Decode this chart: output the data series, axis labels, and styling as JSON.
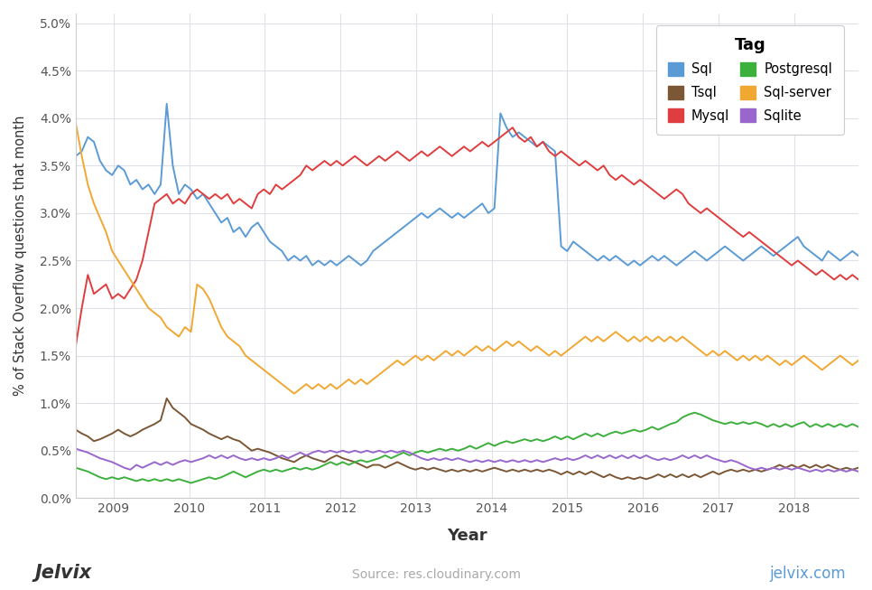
{
  "title": "",
  "xlabel": "Year",
  "ylabel": "% of Stack Overflow questions that month",
  "legend_title": "Tag",
  "background_color": "#ffffff",
  "plot_background": "#ffffff",
  "grid_color": "#e0e0e8",
  "series": {
    "Sql": {
      "color": "#5b9bd5",
      "data": [
        3.6,
        3.65,
        3.8,
        3.75,
        3.55,
        3.45,
        3.4,
        3.5,
        3.45,
        3.3,
        3.35,
        3.25,
        3.3,
        3.2,
        3.3,
        4.15,
        3.5,
        3.2,
        3.3,
        3.25,
        3.15,
        3.2,
        3.1,
        3.0,
        2.9,
        2.95,
        2.8,
        2.85,
        2.75,
        2.85,
        2.9,
        2.8,
        2.7,
        2.65,
        2.6,
        2.5,
        2.55,
        2.5,
        2.55,
        2.45,
        2.5,
        2.45,
        2.5,
        2.45,
        2.5,
        2.55,
        2.5,
        2.45,
        2.5,
        2.6,
        2.65,
        2.7,
        2.75,
        2.8,
        2.85,
        2.9,
        2.95,
        3.0,
        2.95,
        3.0,
        3.05,
        3.0,
        2.95,
        3.0,
        2.95,
        3.0,
        3.05,
        3.1,
        3.0,
        3.05,
        4.05,
        3.9,
        3.8,
        3.85,
        3.8,
        3.75,
        3.7,
        3.75,
        3.7,
        3.65,
        2.65,
        2.6,
        2.7,
        2.65,
        2.6,
        2.55,
        2.5,
        2.55,
        2.5,
        2.55,
        2.5,
        2.45,
        2.5,
        2.45,
        2.5,
        2.55,
        2.5,
        2.55,
        2.5,
        2.45,
        2.5,
        2.55,
        2.6,
        2.55,
        2.5,
        2.55,
        2.6,
        2.65,
        2.6,
        2.55,
        2.5,
        2.55,
        2.6,
        2.65,
        2.6,
        2.55,
        2.6,
        2.65,
        2.7,
        2.75,
        2.65,
        2.6,
        2.55,
        2.5,
        2.6,
        2.55,
        2.5,
        2.55,
        2.6,
        2.55
      ]
    },
    "Mysql": {
      "color": "#e03e3e",
      "data": [
        1.6,
        2.0,
        2.35,
        2.15,
        2.2,
        2.25,
        2.1,
        2.15,
        2.1,
        2.2,
        2.3,
        2.5,
        2.8,
        3.1,
        3.15,
        3.2,
        3.1,
        3.15,
        3.1,
        3.2,
        3.25,
        3.2,
        3.15,
        3.2,
        3.15,
        3.2,
        3.1,
        3.15,
        3.1,
        3.05,
        3.2,
        3.25,
        3.2,
        3.3,
        3.25,
        3.3,
        3.35,
        3.4,
        3.5,
        3.45,
        3.5,
        3.55,
        3.5,
        3.55,
        3.5,
        3.55,
        3.6,
        3.55,
        3.5,
        3.55,
        3.6,
        3.55,
        3.6,
        3.65,
        3.6,
        3.55,
        3.6,
        3.65,
        3.6,
        3.65,
        3.7,
        3.65,
        3.6,
        3.65,
        3.7,
        3.65,
        3.7,
        3.75,
        3.7,
        3.75,
        3.8,
        3.85,
        3.9,
        3.8,
        3.75,
        3.8,
        3.7,
        3.75,
        3.65,
        3.6,
        3.65,
        3.6,
        3.55,
        3.5,
        3.55,
        3.5,
        3.45,
        3.5,
        3.4,
        3.35,
        3.4,
        3.35,
        3.3,
        3.35,
        3.3,
        3.25,
        3.2,
        3.15,
        3.2,
        3.25,
        3.2,
        3.1,
        3.05,
        3.0,
        3.05,
        3.0,
        2.95,
        2.9,
        2.85,
        2.8,
        2.75,
        2.8,
        2.75,
        2.7,
        2.65,
        2.6,
        2.55,
        2.5,
        2.45,
        2.5,
        2.45,
        2.4,
        2.35,
        2.4,
        2.35,
        2.3,
        2.35,
        2.3,
        2.35,
        2.3
      ]
    },
    "Sql-server": {
      "color": "#f0a832",
      "data": [
        3.95,
        3.6,
        3.3,
        3.1,
        2.95,
        2.8,
        2.6,
        2.5,
        2.4,
        2.3,
        2.2,
        2.1,
        2.0,
        1.95,
        1.9,
        1.8,
        1.75,
        1.7,
        1.8,
        1.75,
        2.25,
        2.2,
        2.1,
        1.95,
        1.8,
        1.7,
        1.65,
        1.6,
        1.5,
        1.45,
        1.4,
        1.35,
        1.3,
        1.25,
        1.2,
        1.15,
        1.1,
        1.15,
        1.2,
        1.15,
        1.2,
        1.15,
        1.2,
        1.15,
        1.2,
        1.25,
        1.2,
        1.25,
        1.2,
        1.25,
        1.3,
        1.35,
        1.4,
        1.45,
        1.4,
        1.45,
        1.5,
        1.45,
        1.5,
        1.45,
        1.5,
        1.55,
        1.5,
        1.55,
        1.5,
        1.55,
        1.6,
        1.55,
        1.6,
        1.55,
        1.6,
        1.65,
        1.6,
        1.65,
        1.6,
        1.55,
        1.6,
        1.55,
        1.5,
        1.55,
        1.5,
        1.55,
        1.6,
        1.65,
        1.7,
        1.65,
        1.7,
        1.65,
        1.7,
        1.75,
        1.7,
        1.65,
        1.7,
        1.65,
        1.7,
        1.65,
        1.7,
        1.65,
        1.7,
        1.65,
        1.7,
        1.65,
        1.6,
        1.55,
        1.5,
        1.55,
        1.5,
        1.55,
        1.5,
        1.45,
        1.5,
        1.45,
        1.5,
        1.45,
        1.5,
        1.45,
        1.4,
        1.45,
        1.4,
        1.45,
        1.5,
        1.45,
        1.4,
        1.35,
        1.4,
        1.45,
        1.5,
        1.45,
        1.4,
        1.45
      ]
    },
    "Tsql": {
      "color": "#7b5735",
      "data": [
        0.72,
        0.68,
        0.65,
        0.6,
        0.62,
        0.65,
        0.68,
        0.72,
        0.68,
        0.65,
        0.68,
        0.72,
        0.75,
        0.78,
        0.82,
        1.05,
        0.95,
        0.9,
        0.85,
        0.78,
        0.75,
        0.72,
        0.68,
        0.65,
        0.62,
        0.65,
        0.62,
        0.6,
        0.55,
        0.5,
        0.52,
        0.5,
        0.48,
        0.45,
        0.42,
        0.4,
        0.38,
        0.42,
        0.45,
        0.42,
        0.4,
        0.38,
        0.42,
        0.45,
        0.42,
        0.4,
        0.38,
        0.35,
        0.32,
        0.35,
        0.35,
        0.32,
        0.35,
        0.38,
        0.35,
        0.32,
        0.3,
        0.32,
        0.3,
        0.32,
        0.3,
        0.28,
        0.3,
        0.28,
        0.3,
        0.28,
        0.3,
        0.28,
        0.3,
        0.32,
        0.3,
        0.28,
        0.3,
        0.28,
        0.3,
        0.28,
        0.3,
        0.28,
        0.3,
        0.28,
        0.25,
        0.28,
        0.25,
        0.28,
        0.25,
        0.28,
        0.25,
        0.22,
        0.25,
        0.22,
        0.2,
        0.22,
        0.2,
        0.22,
        0.2,
        0.22,
        0.25,
        0.22,
        0.25,
        0.22,
        0.25,
        0.22,
        0.25,
        0.22,
        0.25,
        0.28,
        0.25,
        0.28,
        0.3,
        0.28,
        0.3,
        0.28,
        0.3,
        0.28,
        0.3,
        0.32,
        0.35,
        0.32,
        0.35,
        0.32,
        0.35,
        0.32,
        0.35,
        0.32,
        0.35,
        0.32,
        0.3,
        0.32,
        0.3,
        0.32
      ]
    },
    "Postgresql": {
      "color": "#3daf3d",
      "data": [
        0.32,
        0.3,
        0.28,
        0.25,
        0.22,
        0.2,
        0.22,
        0.2,
        0.22,
        0.2,
        0.18,
        0.2,
        0.18,
        0.2,
        0.18,
        0.2,
        0.18,
        0.2,
        0.18,
        0.16,
        0.18,
        0.2,
        0.22,
        0.2,
        0.22,
        0.25,
        0.28,
        0.25,
        0.22,
        0.25,
        0.28,
        0.3,
        0.28,
        0.3,
        0.28,
        0.3,
        0.32,
        0.3,
        0.32,
        0.3,
        0.32,
        0.35,
        0.38,
        0.35,
        0.38,
        0.35,
        0.38,
        0.4,
        0.38,
        0.4,
        0.42,
        0.45,
        0.42,
        0.45,
        0.48,
        0.45,
        0.48,
        0.5,
        0.48,
        0.5,
        0.52,
        0.5,
        0.52,
        0.5,
        0.52,
        0.55,
        0.52,
        0.55,
        0.58,
        0.55,
        0.58,
        0.6,
        0.58,
        0.6,
        0.62,
        0.6,
        0.62,
        0.6,
        0.62,
        0.65,
        0.62,
        0.65,
        0.62,
        0.65,
        0.68,
        0.65,
        0.68,
        0.65,
        0.68,
        0.7,
        0.68,
        0.7,
        0.72,
        0.7,
        0.72,
        0.75,
        0.72,
        0.75,
        0.78,
        0.8,
        0.85,
        0.88,
        0.9,
        0.88,
        0.85,
        0.82,
        0.8,
        0.78,
        0.8,
        0.78,
        0.8,
        0.78,
        0.8,
        0.78,
        0.75,
        0.78,
        0.75,
        0.78,
        0.75,
        0.78,
        0.8,
        0.75,
        0.78,
        0.75,
        0.78,
        0.75,
        0.78,
        0.75,
        0.78,
        0.75
      ]
    },
    "Sqlite": {
      "color": "#9966cc",
      "data": [
        0.52,
        0.5,
        0.48,
        0.45,
        0.42,
        0.4,
        0.38,
        0.35,
        0.32,
        0.3,
        0.35,
        0.32,
        0.35,
        0.38,
        0.35,
        0.38,
        0.35,
        0.38,
        0.4,
        0.38,
        0.4,
        0.42,
        0.45,
        0.42,
        0.45,
        0.42,
        0.45,
        0.42,
        0.4,
        0.42,
        0.4,
        0.42,
        0.4,
        0.42,
        0.45,
        0.42,
        0.45,
        0.48,
        0.45,
        0.48,
        0.5,
        0.48,
        0.5,
        0.48,
        0.5,
        0.48,
        0.5,
        0.48,
        0.5,
        0.48,
        0.5,
        0.48,
        0.5,
        0.48,
        0.5,
        0.48,
        0.45,
        0.42,
        0.4,
        0.42,
        0.4,
        0.42,
        0.4,
        0.42,
        0.4,
        0.38,
        0.4,
        0.38,
        0.4,
        0.38,
        0.4,
        0.38,
        0.4,
        0.38,
        0.4,
        0.38,
        0.4,
        0.38,
        0.4,
        0.42,
        0.4,
        0.42,
        0.4,
        0.42,
        0.45,
        0.42,
        0.45,
        0.42,
        0.45,
        0.42,
        0.45,
        0.42,
        0.45,
        0.42,
        0.45,
        0.42,
        0.4,
        0.42,
        0.4,
        0.42,
        0.45,
        0.42,
        0.45,
        0.42,
        0.45,
        0.42,
        0.4,
        0.38,
        0.4,
        0.38,
        0.35,
        0.32,
        0.3,
        0.32,
        0.3,
        0.32,
        0.3,
        0.32,
        0.3,
        0.32,
        0.3,
        0.28,
        0.3,
        0.28,
        0.3,
        0.28,
        0.3,
        0.28,
        0.3,
        0.28
      ]
    }
  },
  "x_start_year": 2008.5,
  "x_end_year": 2018.85,
  "x_ticks": [
    2009,
    2010,
    2011,
    2012,
    2013,
    2014,
    2015,
    2016,
    2017,
    2018
  ],
  "ylim": [
    0.0,
    0.051
  ],
  "yticks": [
    0.0,
    0.005,
    0.01,
    0.015,
    0.02,
    0.025,
    0.03,
    0.035,
    0.04,
    0.045,
    0.05
  ],
  "ytick_labels": [
    "0.0%",
    "0.5%",
    "1.0%",
    "1.5%",
    "2.0%",
    "2.5%",
    "3.0%",
    "3.5%",
    "4.0%",
    "4.5%",
    "5.0%"
  ],
  "footer_left": "Jelvix",
  "footer_center": "Source: res.cloudinary.com",
  "footer_right": "jelvix.com",
  "legend_order": [
    "Sql",
    "Tsql",
    "Mysql",
    "Postgresql",
    "Sql-server",
    "Sqlite"
  ]
}
